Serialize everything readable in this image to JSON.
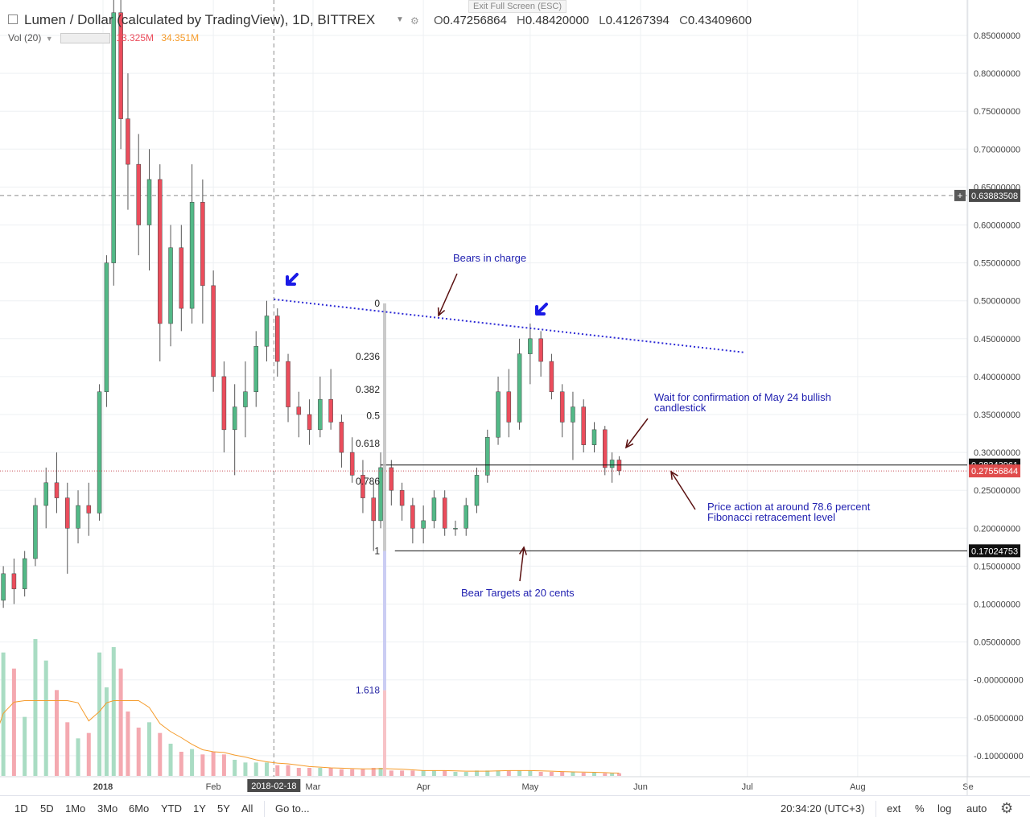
{
  "window": {
    "exit_fullscreen_label": "Exit Full Screen (ESC)"
  },
  "header": {
    "title": "Lumen / Dollar (calculated by TradingView), 1D, BITTREX",
    "ohlc": {
      "o_label": "O",
      "o": "0.47256864",
      "h_label": "H",
      "h": "0.48420000",
      "l_label": "L",
      "l": "0.41267394",
      "c_label": "C",
      "c": "0.43409600"
    },
    "volume": {
      "label": "Vol (20)",
      "value1": "13.325M",
      "value2": "34.351M"
    }
  },
  "timeframes": [
    "1D",
    "5D",
    "1Mo",
    "3Mo",
    "6Mo",
    "YTD",
    "1Y",
    "5Y",
    "All"
  ],
  "goto_label": "Go to...",
  "time_readout": "20:34:20 (UTC+3)",
  "right_controls": [
    "ext",
    "%",
    "log",
    "auto"
  ],
  "colors": {
    "up": "#53b987",
    "down": "#eb4d5c",
    "trendline": "#2e2bd6",
    "annotation_text": "#1f1fb0",
    "arrow": "#5a1010",
    "grid": "#eef0f3",
    "ma": "#f59b2a"
  },
  "chart_data": {
    "type": "candlestick",
    "symbol": "Lumen / Dollar",
    "y_axis": {
      "ticks": [
        "0.85000000",
        "0.80000000",
        "0.75000000",
        "0.70000000",
        "0.65000000",
        "0.60000000",
        "0.55000000",
        "0.50000000",
        "0.45000000",
        "0.40000000",
        "0.35000000",
        "0.30000000",
        "0.25000000",
        "0.20000000",
        "0.15000000",
        "0.10000000",
        "0.05000000",
        "-0.00000000",
        "-0.05000000",
        "-0.10000000"
      ],
      "range": [
        -0.13,
        0.89
      ]
    },
    "x_axis": {
      "ticks": [
        {
          "label": "2018",
          "date": "2018-01-01"
        },
        {
          "label": "Feb",
          "date": "2018-02-01"
        },
        {
          "label": "Mar",
          "date": "2018-03-01"
        },
        {
          "label": "Apr",
          "date": "2018-04-01"
        },
        {
          "label": "May",
          "date": "2018-05-01"
        },
        {
          "label": "Jun",
          "date": "2018-06-01"
        },
        {
          "label": "Jul",
          "date": "2018-07-01"
        },
        {
          "label": "Aug",
          "date": "2018-08-01"
        },
        {
          "label": "Se",
          "date": "2018-09-01"
        }
      ],
      "crosshair_label": "2018-02-18"
    },
    "price_labels": [
      {
        "value": 0.63883508,
        "text": "0.63883508",
        "style": "crosshair"
      },
      {
        "value": 0.28343961,
        "text": "0.28343961",
        "style": "dark"
      },
      {
        "value": 0.27556844,
        "text": "0.27556844",
        "style": "red"
      },
      {
        "value": 0.17024753,
        "text": "0.17024753",
        "style": "dark"
      }
    ],
    "fibonacci": {
      "levels": [
        {
          "label": "0",
          "value": 0.4966
        },
        {
          "label": "0.236",
          "value": 0.4265
        },
        {
          "label": "0.382",
          "value": 0.3829
        },
        {
          "label": "0.5",
          "value": 0.3485
        },
        {
          "label": "0.618",
          "value": 0.3117
        },
        {
          "label": "0.786",
          "value": 0.2617
        },
        {
          "label": "1",
          "value": 0.17
        },
        {
          "label": "1.618",
          "value": -0.0137
        }
      ]
    },
    "trendline": {
      "start": {
        "date": "2018-02-18",
        "price": 0.502
      },
      "end": {
        "date": "2018-06-30",
        "price": 0.432
      }
    },
    "horizontal_lines": [
      {
        "from_date": "2018-03-20",
        "price": 0.28343961
      },
      {
        "from_date": "2018-03-24",
        "price": 0.17024753
      }
    ],
    "annotations": [
      {
        "text": "Bears in charge"
      },
      {
        "text": "Wait for confirmation of May 24 bullish candlestick"
      },
      {
        "text": "Price action at around 78.6 percent Fibonacci retracement level"
      },
      {
        "text": "Bear Targets at 20 cents"
      }
    ],
    "candles": [
      {
        "date": "2017-11-28",
        "o": 0.085,
        "h": 0.098,
        "l": 0.078,
        "c": 0.092
      },
      {
        "date": "2017-12-01",
        "o": 0.092,
        "h": 0.11,
        "l": 0.088,
        "c": 0.105
      },
      {
        "date": "2017-12-04",
        "o": 0.105,
        "h": 0.15,
        "l": 0.095,
        "c": 0.14
      },
      {
        "date": "2017-12-07",
        "o": 0.14,
        "h": 0.16,
        "l": 0.1,
        "c": 0.12
      },
      {
        "date": "2017-12-10",
        "o": 0.12,
        "h": 0.17,
        "l": 0.11,
        "c": 0.16
      },
      {
        "date": "2017-12-13",
        "o": 0.16,
        "h": 0.24,
        "l": 0.15,
        "c": 0.23
      },
      {
        "date": "2017-12-16",
        "o": 0.23,
        "h": 0.28,
        "l": 0.2,
        "c": 0.26
      },
      {
        "date": "2017-12-19",
        "o": 0.26,
        "h": 0.3,
        "l": 0.22,
        "c": 0.24
      },
      {
        "date": "2017-12-22",
        "o": 0.24,
        "h": 0.26,
        "l": 0.14,
        "c": 0.2
      },
      {
        "date": "2017-12-25",
        "o": 0.2,
        "h": 0.25,
        "l": 0.18,
        "c": 0.23
      },
      {
        "date": "2017-12-28",
        "o": 0.23,
        "h": 0.26,
        "l": 0.19,
        "c": 0.22
      },
      {
        "date": "2017-12-31",
        "o": 0.22,
        "h": 0.39,
        "l": 0.21,
        "c": 0.38
      },
      {
        "date": "2018-01-02",
        "o": 0.38,
        "h": 0.56,
        "l": 0.36,
        "c": 0.55
      },
      {
        "date": "2018-01-04",
        "o": 0.55,
        "h": 0.9,
        "l": 0.52,
        "c": 0.88
      },
      {
        "date": "2018-01-06",
        "o": 0.88,
        "h": 0.91,
        "l": 0.7,
        "c": 0.74
      },
      {
        "date": "2018-01-08",
        "o": 0.74,
        "h": 0.8,
        "l": 0.62,
        "c": 0.68
      },
      {
        "date": "2018-01-11",
        "o": 0.68,
        "h": 0.72,
        "l": 0.56,
        "c": 0.6
      },
      {
        "date": "2018-01-14",
        "o": 0.6,
        "h": 0.7,
        "l": 0.54,
        "c": 0.66
      },
      {
        "date": "2018-01-17",
        "o": 0.66,
        "h": 0.68,
        "l": 0.42,
        "c": 0.47
      },
      {
        "date": "2018-01-20",
        "o": 0.47,
        "h": 0.6,
        "l": 0.44,
        "c": 0.57
      },
      {
        "date": "2018-01-23",
        "o": 0.57,
        "h": 0.6,
        "l": 0.46,
        "c": 0.49
      },
      {
        "date": "2018-01-26",
        "o": 0.49,
        "h": 0.68,
        "l": 0.47,
        "c": 0.63
      },
      {
        "date": "2018-01-29",
        "o": 0.63,
        "h": 0.66,
        "l": 0.47,
        "c": 0.52
      },
      {
        "date": "2018-02-01",
        "o": 0.52,
        "h": 0.54,
        "l": 0.38,
        "c": 0.4
      },
      {
        "date": "2018-02-04",
        "o": 0.4,
        "h": 0.42,
        "l": 0.3,
        "c": 0.33
      },
      {
        "date": "2018-02-07",
        "o": 0.33,
        "h": 0.39,
        "l": 0.27,
        "c": 0.36
      },
      {
        "date": "2018-02-10",
        "o": 0.36,
        "h": 0.42,
        "l": 0.32,
        "c": 0.38
      },
      {
        "date": "2018-02-13",
        "o": 0.38,
        "h": 0.46,
        "l": 0.36,
        "c": 0.44
      },
      {
        "date": "2018-02-16",
        "o": 0.44,
        "h": 0.5,
        "l": 0.42,
        "c": 0.48
      },
      {
        "date": "2018-02-19",
        "o": 0.48,
        "h": 0.49,
        "l": 0.4,
        "c": 0.42
      },
      {
        "date": "2018-02-22",
        "o": 0.42,
        "h": 0.43,
        "l": 0.34,
        "c": 0.36
      },
      {
        "date": "2018-02-25",
        "o": 0.36,
        "h": 0.38,
        "l": 0.32,
        "c": 0.35
      },
      {
        "date": "2018-02-28",
        "o": 0.35,
        "h": 0.37,
        "l": 0.31,
        "c": 0.33
      },
      {
        "date": "2018-03-03",
        "o": 0.33,
        "h": 0.4,
        "l": 0.32,
        "c": 0.37
      },
      {
        "date": "2018-03-06",
        "o": 0.37,
        "h": 0.41,
        "l": 0.33,
        "c": 0.34
      },
      {
        "date": "2018-03-09",
        "o": 0.34,
        "h": 0.35,
        "l": 0.28,
        "c": 0.3
      },
      {
        "date": "2018-03-12",
        "o": 0.3,
        "h": 0.32,
        "l": 0.26,
        "c": 0.27
      },
      {
        "date": "2018-03-15",
        "o": 0.27,
        "h": 0.29,
        "l": 0.22,
        "c": 0.24
      },
      {
        "date": "2018-03-18",
        "o": 0.24,
        "h": 0.26,
        "l": 0.17,
        "c": 0.21
      },
      {
        "date": "2018-03-20",
        "o": 0.21,
        "h": 0.3,
        "l": 0.2,
        "c": 0.28
      },
      {
        "date": "2018-03-23",
        "o": 0.28,
        "h": 0.29,
        "l": 0.23,
        "c": 0.25
      },
      {
        "date": "2018-03-26",
        "o": 0.25,
        "h": 0.26,
        "l": 0.21,
        "c": 0.23
      },
      {
        "date": "2018-03-29",
        "o": 0.23,
        "h": 0.24,
        "l": 0.18,
        "c": 0.2
      },
      {
        "date": "2018-04-01",
        "o": 0.2,
        "h": 0.23,
        "l": 0.18,
        "c": 0.21
      },
      {
        "date": "2018-04-04",
        "o": 0.21,
        "h": 0.25,
        "l": 0.2,
        "c": 0.24
      },
      {
        "date": "2018-04-07",
        "o": 0.24,
        "h": 0.25,
        "l": 0.19,
        "c": 0.2
      },
      {
        "date": "2018-04-10",
        "o": 0.2,
        "h": 0.21,
        "l": 0.19,
        "c": 0.2
      },
      {
        "date": "2018-04-13",
        "o": 0.2,
        "h": 0.24,
        "l": 0.19,
        "c": 0.23
      },
      {
        "date": "2018-04-16",
        "o": 0.23,
        "h": 0.28,
        "l": 0.22,
        "c": 0.27
      },
      {
        "date": "2018-04-19",
        "o": 0.27,
        "h": 0.33,
        "l": 0.26,
        "c": 0.32
      },
      {
        "date": "2018-04-22",
        "o": 0.32,
        "h": 0.4,
        "l": 0.31,
        "c": 0.38
      },
      {
        "date": "2018-04-25",
        "o": 0.38,
        "h": 0.41,
        "l": 0.32,
        "c": 0.34
      },
      {
        "date": "2018-04-28",
        "o": 0.34,
        "h": 0.45,
        "l": 0.33,
        "c": 0.43
      },
      {
        "date": "2018-05-01",
        "o": 0.43,
        "h": 0.47,
        "l": 0.39,
        "c": 0.45
      },
      {
        "date": "2018-05-04",
        "o": 0.45,
        "h": 0.46,
        "l": 0.4,
        "c": 0.42
      },
      {
        "date": "2018-05-07",
        "o": 0.42,
        "h": 0.43,
        "l": 0.37,
        "c": 0.38
      },
      {
        "date": "2018-05-10",
        "o": 0.38,
        "h": 0.39,
        "l": 0.32,
        "c": 0.34
      },
      {
        "date": "2018-05-13",
        "o": 0.34,
        "h": 0.38,
        "l": 0.29,
        "c": 0.36
      },
      {
        "date": "2018-05-16",
        "o": 0.36,
        "h": 0.37,
        "l": 0.3,
        "c": 0.31
      },
      {
        "date": "2018-05-19",
        "o": 0.31,
        "h": 0.34,
        "l": 0.3,
        "c": 0.33
      },
      {
        "date": "2018-05-22",
        "o": 0.33,
        "h": 0.335,
        "l": 0.27,
        "c": 0.28
      },
      {
        "date": "2018-05-24",
        "o": 0.28,
        "h": 0.3,
        "l": 0.26,
        "c": 0.29
      },
      {
        "date": "2018-05-26",
        "o": 0.29,
        "h": 0.295,
        "l": 0.27,
        "c": 0.276
      }
    ],
    "volume": {
      "ma_label": "Vol (20)",
      "bars": [
        {
          "date": "2017-11-28",
          "v": 0.1
        },
        {
          "date": "2017-12-01",
          "v": 0.14
        },
        {
          "date": "2017-12-04",
          "v": 0.46
        },
        {
          "date": "2017-12-07",
          "v": 0.4
        },
        {
          "date": "2017-12-10",
          "v": 0.22
        },
        {
          "date": "2017-12-13",
          "v": 0.51
        },
        {
          "date": "2017-12-16",
          "v": 0.43
        },
        {
          "date": "2017-12-19",
          "v": 0.32
        },
        {
          "date": "2017-12-22",
          "v": 0.2
        },
        {
          "date": "2017-12-25",
          "v": 0.14
        },
        {
          "date": "2017-12-28",
          "v": 0.16
        },
        {
          "date": "2017-12-31",
          "v": 0.46
        },
        {
          "date": "2018-01-02",
          "v": 0.33
        },
        {
          "date": "2018-01-04",
          "v": 0.48
        },
        {
          "date": "2018-01-06",
          "v": 0.4
        },
        {
          "date": "2018-01-08",
          "v": 0.24
        },
        {
          "date": "2018-01-11",
          "v": 0.18
        },
        {
          "date": "2018-01-14",
          "v": 0.2
        },
        {
          "date": "2018-01-17",
          "v": 0.16
        },
        {
          "date": "2018-01-20",
          "v": 0.12
        },
        {
          "date": "2018-01-23",
          "v": 0.09
        },
        {
          "date": "2018-01-26",
          "v": 0.1
        },
        {
          "date": "2018-01-29",
          "v": 0.08
        },
        {
          "date": "2018-02-01",
          "v": 0.09
        },
        {
          "date": "2018-02-04",
          "v": 0.08
        },
        {
          "date": "2018-02-07",
          "v": 0.06
        },
        {
          "date": "2018-02-10",
          "v": 0.05
        },
        {
          "date": "2018-02-13",
          "v": 0.05
        },
        {
          "date": "2018-02-16",
          "v": 0.05
        },
        {
          "date": "2018-02-19",
          "v": 0.04
        },
        {
          "date": "2018-02-22",
          "v": 0.04
        },
        {
          "date": "2018-02-25",
          "v": 0.03
        },
        {
          "date": "2018-02-28",
          "v": 0.03
        },
        {
          "date": "2018-03-03",
          "v": 0.03
        },
        {
          "date": "2018-03-06",
          "v": 0.03
        },
        {
          "date": "2018-03-09",
          "v": 0.025
        },
        {
          "date": "2018-03-12",
          "v": 0.025
        },
        {
          "date": "2018-03-15",
          "v": 0.025
        },
        {
          "date": "2018-03-18",
          "v": 0.03
        },
        {
          "date": "2018-03-20",
          "v": 0.03
        },
        {
          "date": "2018-03-23",
          "v": 0.02
        },
        {
          "date": "2018-03-26",
          "v": 0.02
        },
        {
          "date": "2018-03-29",
          "v": 0.02
        },
        {
          "date": "2018-04-01",
          "v": 0.02
        },
        {
          "date": "2018-04-04",
          "v": 0.02
        },
        {
          "date": "2018-04-07",
          "v": 0.02
        },
        {
          "date": "2018-04-10",
          "v": 0.015
        },
        {
          "date": "2018-04-13",
          "v": 0.015
        },
        {
          "date": "2018-04-16",
          "v": 0.02
        },
        {
          "date": "2018-04-19",
          "v": 0.02
        },
        {
          "date": "2018-04-22",
          "v": 0.02
        },
        {
          "date": "2018-04-25",
          "v": 0.02
        },
        {
          "date": "2018-04-28",
          "v": 0.02
        },
        {
          "date": "2018-05-01",
          "v": 0.02
        },
        {
          "date": "2018-05-04",
          "v": 0.015
        },
        {
          "date": "2018-05-07",
          "v": 0.015
        },
        {
          "date": "2018-05-10",
          "v": 0.015
        },
        {
          "date": "2018-05-13",
          "v": 0.015
        },
        {
          "date": "2018-05-16",
          "v": 0.012
        },
        {
          "date": "2018-05-19",
          "v": 0.012
        },
        {
          "date": "2018-05-22",
          "v": 0.01
        },
        {
          "date": "2018-05-24",
          "v": 0.01
        },
        {
          "date": "2018-05-26",
          "v": 0.01
        }
      ]
    }
  }
}
